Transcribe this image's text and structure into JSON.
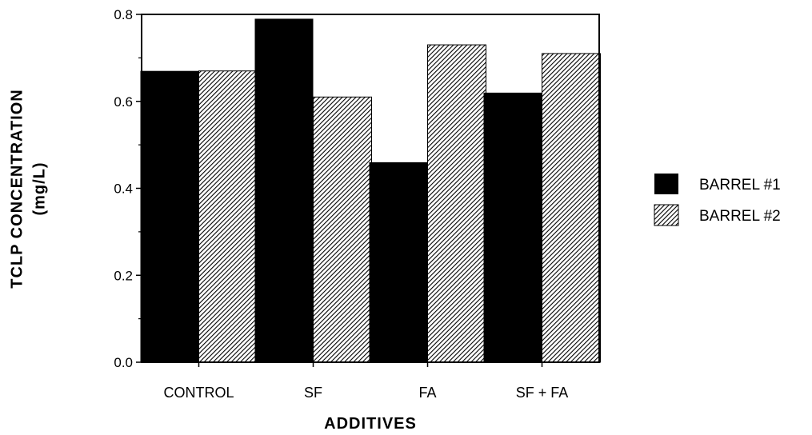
{
  "chart_data": {
    "type": "bar",
    "categories": [
      "CONTROL",
      "SF",
      "FA",
      "SF + FA"
    ],
    "series": [
      {
        "name": "BARREL #1",
        "values": [
          0.67,
          0.79,
          0.46,
          0.62
        ],
        "fill": "solid",
        "color": "#000000"
      },
      {
        "name": "BARREL #2",
        "values": [
          0.67,
          0.61,
          0.73,
          0.71
        ],
        "fill": "hatched",
        "color": "#000000"
      }
    ],
    "xlabel": "ADDITIVES",
    "ylabel_line1": "TCLP CONCENTRATION",
    "ylabel_line2": "(mg/L)",
    "ylim": [
      0,
      0.8
    ],
    "yticks": [
      "0.0",
      "0.2",
      "0.4",
      "0.6",
      "0.8"
    ],
    "grid": false,
    "legend_position": "right"
  }
}
